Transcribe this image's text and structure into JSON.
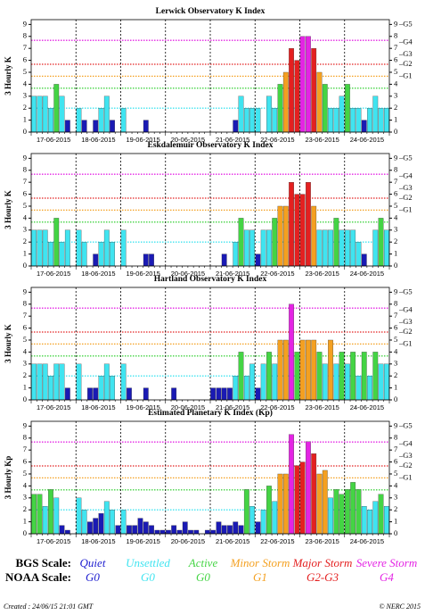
{
  "chart_data": [
    {
      "type": "bar",
      "title": "Lerwick Observatory K Index",
      "y_label": "3 Hourly K",
      "days": [
        "17-06-2015",
        "18-06-2015",
        "19-06-2015",
        "20-06-2015",
        "21-06-2015",
        "22-06-2015",
        "23-06-2015",
        "24-06-2015"
      ],
      "values": [
        3,
        3,
        3,
        2,
        4,
        3,
        1,
        0,
        2,
        1,
        0,
        1,
        2,
        3,
        1,
        0,
        2,
        0,
        0,
        0,
        1,
        0,
        0,
        0,
        0,
        0,
        0,
        0,
        0,
        0,
        0,
        0,
        0,
        0,
        0,
        0,
        1,
        3,
        2,
        2,
        2,
        0,
        3,
        2,
        4,
        5,
        7,
        6,
        8,
        8,
        7,
        5,
        4,
        2,
        2,
        3,
        4,
        2,
        2,
        1,
        2,
        3,
        2,
        2
      ],
      "k_colors": [
        "#1a1ab4",
        "#1a1ab4",
        "#40e4f0",
        "#40e4f0",
        "#44d444",
        "#f4a020",
        "#e42020",
        "#e42020",
        "#e424e4",
        "#e424e4"
      ],
      "ylim": [
        0,
        9.4
      ],
      "yticks": [
        0,
        1,
        2,
        3,
        4,
        5,
        6,
        7,
        8,
        9
      ],
      "y2lim": [
        0,
        9.4
      ],
      "y2ticks": [
        0,
        1,
        2,
        3,
        4,
        5,
        6,
        7,
        8,
        9
      ],
      "g_ticks": [
        {
          "value": 9,
          "label": "–G5"
        },
        {
          "value": 7.5,
          "label": "–G4"
        },
        {
          "value": 6.5,
          "label": "–G3"
        },
        {
          "value": 5.67,
          "label": "–G2"
        },
        {
          "value": 4.67,
          "label": "–G1"
        }
      ],
      "ref_lines": [
        {
          "value": 7.67,
          "color": "#e424e4"
        },
        {
          "value": 5.67,
          "color": "#e42020"
        },
        {
          "value": 4.67,
          "color": "#f4a020"
        },
        {
          "value": 3.67,
          "color": "#44d444"
        },
        {
          "value": 2,
          "color": "#40e4f0"
        }
      ]
    },
    {
      "type": "bar",
      "title": "Eskdalemuir Observatory K Index",
      "y_label": "3 Hourly K",
      "days": [
        "17-06-2015",
        "18-06-2015",
        "19-06-2015",
        "20-06-2015",
        "21-06-2015",
        "22-06-2015",
        "23-06-2015",
        "24-06-2015"
      ],
      "values": [
        3,
        3,
        3,
        2,
        4,
        2,
        3,
        0,
        3,
        2,
        0,
        1,
        2,
        3,
        2,
        0,
        3,
        0,
        0,
        0,
        1,
        1,
        0,
        0,
        0,
        0,
        0,
        0,
        0,
        0,
        0,
        0,
        0,
        0,
        1,
        0,
        2,
        4,
        3,
        3,
        1,
        3,
        3,
        4,
        5,
        5,
        7,
        6,
        6,
        7,
        5,
        3,
        3,
        3,
        4,
        3,
        3,
        3,
        2,
        1,
        0,
        3,
        4,
        3
      ],
      "k_colors": [
        "#1a1ab4",
        "#1a1ab4",
        "#40e4f0",
        "#40e4f0",
        "#44d444",
        "#f4a020",
        "#e42020",
        "#e42020",
        "#e424e4",
        "#e424e4"
      ],
      "ylim": [
        0,
        9.4
      ],
      "yticks": [
        0,
        1,
        2,
        3,
        4,
        5,
        6,
        7,
        8,
        9
      ],
      "y2lim": [
        0,
        9.4
      ],
      "y2ticks": [
        0,
        1,
        2,
        3,
        4,
        5,
        6,
        7,
        8,
        9
      ],
      "g_ticks": [
        {
          "value": 9,
          "label": "–G5"
        },
        {
          "value": 7.5,
          "label": "–G4"
        },
        {
          "value": 6.5,
          "label": "–G3"
        },
        {
          "value": 5.67,
          "label": "–G2"
        },
        {
          "value": 4.67,
          "label": "–G1"
        }
      ],
      "ref_lines": [
        {
          "value": 7.67,
          "color": "#e424e4"
        },
        {
          "value": 5.67,
          "color": "#e42020"
        },
        {
          "value": 4.67,
          "color": "#f4a020"
        },
        {
          "value": 3.67,
          "color": "#44d444"
        },
        {
          "value": 2,
          "color": "#40e4f0"
        }
      ]
    },
    {
      "type": "bar",
      "title": "Hartland Observatory K Index",
      "y_label": "3 Hourly K",
      "days": [
        "17-06-2015",
        "18-06-2015",
        "19-06-2015",
        "20-06-2015",
        "21-06-2015",
        "22-06-2015",
        "23-06-2015",
        "24-06-2015"
      ],
      "values": [
        3,
        3,
        3,
        2,
        3,
        3,
        1,
        0,
        3,
        0,
        1,
        1,
        2,
        3,
        2,
        0,
        3,
        1,
        0,
        0,
        1,
        0,
        0,
        0,
        0,
        1,
        0,
        0,
        0,
        0,
        0,
        0,
        1,
        1,
        1,
        1,
        2,
        4,
        2,
        3,
        1,
        3,
        4,
        3,
        5,
        5,
        8,
        4,
        5,
        5,
        5,
        4,
        3,
        5,
        3,
        4,
        3,
        4,
        2,
        4,
        2,
        4,
        3,
        3
      ],
      "k_colors": [
        "#1a1ab4",
        "#1a1ab4",
        "#40e4f0",
        "#40e4f0",
        "#44d444",
        "#f4a020",
        "#e42020",
        "#e42020",
        "#e424e4",
        "#e424e4"
      ],
      "ylim": [
        0,
        9.4
      ],
      "yticks": [
        0,
        1,
        2,
        3,
        4,
        5,
        6,
        7,
        8,
        9
      ],
      "y2lim": [
        0,
        9.4
      ],
      "y2ticks": [
        0,
        1,
        2,
        3,
        4,
        5,
        6,
        7,
        8,
        9
      ],
      "g_ticks": [
        {
          "value": 9,
          "label": "–G5"
        },
        {
          "value": 7.5,
          "label": "–G4"
        },
        {
          "value": 6.5,
          "label": "–G3"
        },
        {
          "value": 5.67,
          "label": "–G2"
        },
        {
          "value": 4.67,
          "label": "–G1"
        }
      ],
      "ref_lines": [
        {
          "value": 7.67,
          "color": "#e424e4"
        },
        {
          "value": 5.67,
          "color": "#e42020"
        },
        {
          "value": 4.67,
          "color": "#f4a020"
        },
        {
          "value": 3.67,
          "color": "#44d444"
        },
        {
          "value": 2,
          "color": "#40e4f0"
        }
      ]
    },
    {
      "type": "bar",
      "title": "Estimated Planetary K Index (Kp)",
      "y_label": "3 Hourly Kp",
      "days": [
        "17-06-2015",
        "18-06-2015",
        "19-06-2015",
        "20-06-2015",
        "21-06-2015",
        "22-06-2015",
        "23-06-2015",
        "24-06-2015"
      ],
      "values": [
        3.3,
        3.3,
        2.3,
        3.7,
        3.0,
        0.7,
        0.3,
        0,
        3.0,
        2.0,
        1.0,
        1.3,
        1.7,
        2.7,
        2.0,
        0.7,
        2.0,
        0.7,
        0.7,
        1.3,
        1.0,
        0.7,
        0.3,
        0.3,
        0.3,
        0.7,
        0.3,
        1.0,
        0.3,
        0.3,
        0,
        0.3,
        0.3,
        1.0,
        0.7,
        0.7,
        1.0,
        0.7,
        3.7,
        2.3,
        1.0,
        2.0,
        4.0,
        2.7,
        5.0,
        5.0,
        8.3,
        5.7,
        6.0,
        7.7,
        6.7,
        5.0,
        5.3,
        3.0,
        3.7,
        3.3,
        3.7,
        4.3,
        3.7,
        2.3,
        2.0,
        2.7,
        3.3,
        2.3
      ],
      "colors": [
        "#44d444",
        "#44d444",
        "#40e4f0",
        "#44d444",
        "#40e4f0",
        "#1a1ab4",
        "#1a1ab4",
        "#1a1ab4",
        "#40e4f0",
        "#40e4f0",
        "#1a1ab4",
        "#1a1ab4",
        "#1a1ab4",
        "#40e4f0",
        "#40e4f0",
        "#1a1ab4",
        "#40e4f0",
        "#1a1ab4",
        "#1a1ab4",
        "#1a1ab4",
        "#1a1ab4",
        "#1a1ab4",
        "#1a1ab4",
        "#1a1ab4",
        "#1a1ab4",
        "#1a1ab4",
        "#1a1ab4",
        "#1a1ab4",
        "#1a1ab4",
        "#1a1ab4",
        "#1a1ab4",
        "#1a1ab4",
        "#1a1ab4",
        "#1a1ab4",
        "#1a1ab4",
        "#1a1ab4",
        "#1a1ab4",
        "#1a1ab4",
        "#44d444",
        "#40e4f0",
        "#1a1ab4",
        "#40e4f0",
        "#44d444",
        "#40e4f0",
        "#f4a020",
        "#f4a020",
        "#e424e4",
        "#e42020",
        "#e42020",
        "#e424e4",
        "#e42020",
        "#f4a020",
        "#f4a020",
        "#40e4f0",
        "#44d444",
        "#44d444",
        "#44d444",
        "#44d444",
        "#44d444",
        "#40e4f0",
        "#40e4f0",
        "#40e4f0",
        "#44d444",
        "#40e4f0"
      ],
      "ylim": [
        0,
        9.4
      ],
      "yticks": [
        0,
        1,
        2,
        3,
        4,
        5,
        6,
        7,
        8,
        9
      ],
      "y2lim": [
        0,
        9.4
      ],
      "y2ticks": [
        0,
        1,
        2,
        3,
        4,
        5,
        6,
        7,
        8,
        9
      ],
      "g_ticks": [
        {
          "value": 9,
          "label": "–G5"
        },
        {
          "value": 7.5,
          "label": "–G4"
        },
        {
          "value": 6.5,
          "label": "–G3"
        },
        {
          "value": 5.67,
          "label": "–G2"
        },
        {
          "value": 4.67,
          "label": "–G1"
        }
      ],
      "ref_lines": [
        {
          "value": 7.67,
          "color": "#e424e4"
        },
        {
          "value": 5.67,
          "color": "#e42020"
        },
        {
          "value": 4.67,
          "color": "#f4a020"
        },
        {
          "value": 3.67,
          "color": "#44d444"
        },
        {
          "value": 2,
          "color": "#40e4f0"
        }
      ]
    }
  ],
  "legend": {
    "bgs_label": "BGS Scale:",
    "noaa_label": "NOAA Scale:",
    "levels": [
      {
        "name": "Quiet",
        "noaa": "G0",
        "color": "#2020d0"
      },
      {
        "name": "Unsettled",
        "noaa": "G0",
        "color": "#40e4f0"
      },
      {
        "name": "Active",
        "noaa": "G0",
        "color": "#44d444"
      },
      {
        "name": "Minor Storm",
        "noaa": "G1",
        "color": "#f4a020"
      },
      {
        "name": "Major Storm",
        "noaa": "G2-G3",
        "color": "#e42020"
      },
      {
        "name": "Severe Storm",
        "noaa": "G4",
        "color": "#e424e4"
      }
    ]
  },
  "footer": {
    "created": "Created : 24/06/15 21:01 GMT",
    "copyright": "© NERC 2015"
  }
}
